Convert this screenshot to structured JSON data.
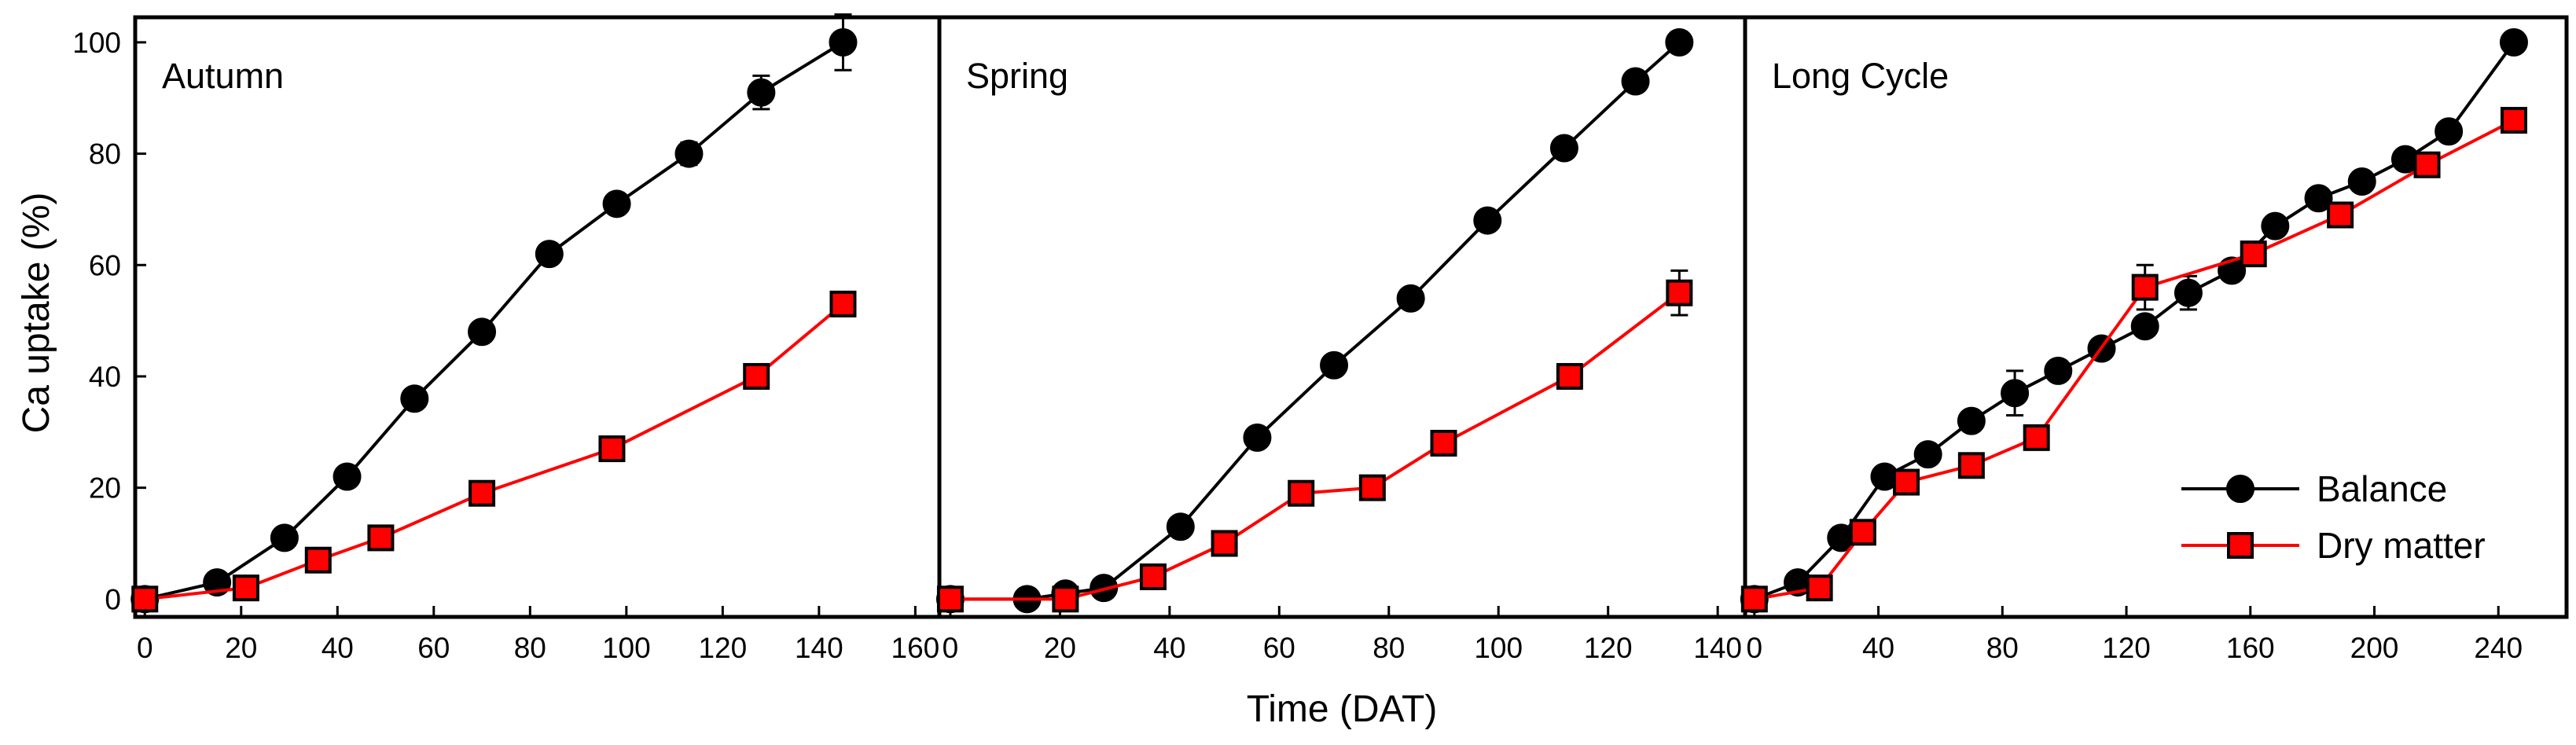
{
  "colors": {
    "balance": "#000000",
    "dry_matter": "#ff0000",
    "marker_edge": "#000000"
  },
  "chart_data": {
    "type": "line",
    "ylabel": "Ca uptake (%)",
    "xlabel": "Time (DAT)",
    "ylim": [
      0,
      100
    ],
    "yticks": [
      0,
      20,
      40,
      60,
      80,
      100
    ],
    "legend": {
      "position": "bottom-right",
      "entries": [
        {
          "name": "Balance",
          "marker": "circle",
          "color": "#000000"
        },
        {
          "name": "Dry matter",
          "marker": "square",
          "color": "#ff0000"
        }
      ]
    },
    "panels": [
      {
        "title": "Autumn",
        "xlim": [
          -2,
          165
        ],
        "xticks": [
          0,
          20,
          40,
          60,
          80,
          100,
          120,
          140,
          160
        ],
        "series": [
          {
            "name": "Balance",
            "marker": "circle",
            "color": "#000000",
            "x": [
              0,
              15,
              29,
              42,
              56,
              70,
              84,
              98,
              113,
              128,
              145
            ],
            "y": [
              0,
              3,
              11,
              22,
              36,
              48,
              62,
              71,
              80,
              91,
              100
            ],
            "err": [
              0,
              0,
              0,
              0,
              0,
              0,
              0,
              0,
              2,
              3,
              5
            ]
          },
          {
            "name": "Dry matter",
            "marker": "square",
            "color": "#ff0000",
            "x": [
              0,
              21,
              36,
              49,
              70,
              97,
              127,
              145
            ],
            "y": [
              0,
              2,
              7,
              11,
              19,
              27,
              40,
              53
            ],
            "err": [
              0,
              0,
              0,
              0,
              0,
              0,
              0,
              0
            ]
          }
        ]
      },
      {
        "title": "Spring",
        "xlim": [
          -2,
          145
        ],
        "xticks": [
          0,
          20,
          40,
          60,
          80,
          100,
          120,
          140
        ],
        "series": [
          {
            "name": "Balance",
            "marker": "circle",
            "color": "#000000",
            "x": [
              0,
              14,
              21,
              28,
              42,
              56,
              70,
              84,
              98,
              112,
              125,
              133
            ],
            "y": [
              0,
              0,
              1,
              2,
              13,
              29,
              42,
              54,
              68,
              81,
              93,
              100
            ],
            "err": [
              0,
              0,
              0,
              0,
              0,
              0,
              0,
              0,
              0,
              0,
              0,
              0
            ]
          },
          {
            "name": "Dry matter",
            "marker": "square",
            "color": "#ff0000",
            "x": [
              0,
              21,
              37,
              50,
              64,
              77,
              90,
              113,
              133
            ],
            "y": [
              0,
              0,
              4,
              10,
              19,
              20,
              28,
              40,
              55
            ],
            "err": [
              0,
              0,
              0,
              0,
              0,
              0,
              0,
              0,
              4
            ]
          }
        ]
      },
      {
        "title": "Long Cycle",
        "xlim": [
          -3,
          262
        ],
        "xticks": [
          0,
          40,
          80,
          120,
          160,
          200,
          240
        ],
        "series": [
          {
            "name": "Balance",
            "marker": "circle",
            "color": "#000000",
            "x": [
              0,
              14,
              28,
              42,
              56,
              70,
              84,
              98,
              112,
              126,
              140,
              154,
              168,
              182,
              196,
              210,
              224,
              245
            ],
            "y": [
              0,
              3,
              11,
              22,
              26,
              32,
              37,
              41,
              45,
              49,
              55,
              59,
              67,
              72,
              75,
              79,
              84,
              100
            ],
            "err": [
              0,
              0,
              0,
              0,
              0,
              0,
              4,
              0,
              0,
              0,
              3,
              0,
              0,
              0,
              0,
              0,
              0,
              0
            ]
          },
          {
            "name": "Dry matter",
            "marker": "square",
            "color": "#ff0000",
            "x": [
              0,
              21,
              35,
              49,
              70,
              91,
              126,
              161,
              189,
              217,
              245
            ],
            "y": [
              0,
              2,
              12,
              21,
              24,
              29,
              56,
              62,
              69,
              78,
              86
            ],
            "err": [
              0,
              0,
              0,
              0,
              0,
              0,
              4,
              0,
              0,
              0,
              2
            ]
          }
        ]
      }
    ]
  }
}
